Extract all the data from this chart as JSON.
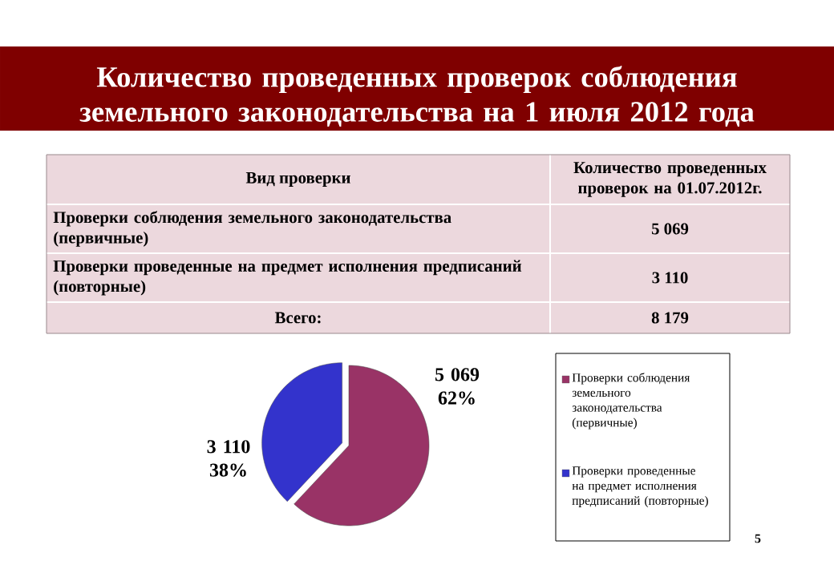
{
  "chart_data": {
    "type": "pie",
    "title": "Количество проведенных проверок соблюдения земельного законодательства на 1 июля 2012 года",
    "categories": [
      "Проверки соблюдения земельного законодательства (первичные)",
      "Проверки проведенные на предмет исполнения предписаний (повторные)"
    ],
    "values": [
      5069,
      3110
    ],
    "colors": [
      "#993366",
      "#3333cc"
    ],
    "value_labels": [
      "5 069\n62%",
      "3 110\n38%"
    ],
    "legend": "right",
    "annotations": [
      "Вид проверки",
      "Количество проведенных проверок на 01.07.2012г.",
      "5 069",
      "3 110",
      "Всего:",
      "8 179",
      "5"
    ]
  }
}
